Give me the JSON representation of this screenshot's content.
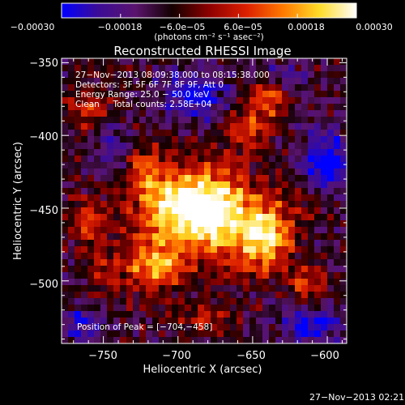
{
  "chart_data": {
    "type": "heatmap",
    "title": "Reconstructed RHESSI Image",
    "xlabel": "Heliocentric X (arcsec)",
    "ylabel": "Heliocentric Y (arcsec)",
    "xlim": [
      -778,
      -587
    ],
    "ylim": [
      -543,
      -347
    ],
    "x_ticks": [
      -750,
      -700,
      -650,
      -600
    ],
    "x_tick_labels": [
      "−750",
      "−700",
      "−650",
      "−600"
    ],
    "y_ticks": [
      -350,
      -400,
      -450,
      -500
    ],
    "y_tick_labels": [
      "−350",
      "−400",
      "−450",
      "−500"
    ],
    "colorbar": {
      "min": -0.0003,
      "max": 0.0003,
      "ticks": [
        -0.0003,
        -0.00018,
        -6e-05,
        6e-05,
        0.00018,
        0.0003
      ],
      "tick_labels": [
        "−0.00030",
        "−0.00018",
        "−6.0e−05",
        "6.0e−05",
        "0.00018",
        "0.00030"
      ],
      "units": "(photons cm⁻² s⁻¹ asec⁻²)",
      "colormap": [
        "#0000ff",
        "#3c0c96",
        "#5a146e",
        "#140000",
        "#8c0000",
        "#dc1e00",
        "#ff7800",
        "#ffdc28",
        "#ffffff"
      ]
    },
    "annotations": [
      "27−Nov−2013 08:09:38.000 to 08:15:38.000",
      "Detectors: 3F 5F 6F 7F 8F 9F, Att 0",
      "Energy Range: 25.0 − 50.0 keV",
      "Clean     Total counts: 2.58E+04"
    ],
    "peak_label": "Position of Peak = [−704,−458]",
    "peak": {
      "x": -704,
      "y": -458
    },
    "sources": [
      {
        "x": -700,
        "y": -450,
        "sx": 20,
        "sy": 18,
        "a": 0.95
      },
      {
        "x": -670,
        "y": -455,
        "sx": 18,
        "sy": 22,
        "a": 0.8
      },
      {
        "x": -640,
        "y": -470,
        "sx": 12,
        "sy": 16,
        "a": 0.85
      },
      {
        "x": -715,
        "y": -490,
        "sx": 14,
        "sy": 12,
        "a": 0.7
      },
      {
        "x": -640,
        "y": -375,
        "sx": 9,
        "sy": 9,
        "a": 0.55
      },
      {
        "x": -655,
        "y": -395,
        "sx": 10,
        "sy": 9,
        "a": 0.45
      },
      {
        "x": -760,
        "y": -460,
        "sx": 9,
        "sy": 12,
        "a": 0.45
      },
      {
        "x": -748,
        "y": -495,
        "sx": 8,
        "sy": 10,
        "a": 0.4
      },
      {
        "x": -760,
        "y": -380,
        "sx": 10,
        "sy": 10,
        "a": 0.35
      },
      {
        "x": -722,
        "y": -423,
        "sx": 10,
        "sy": 12,
        "a": 0.4
      },
      {
        "x": -612,
        "y": -505,
        "sx": 9,
        "sy": 9,
        "a": 0.45
      },
      {
        "x": -680,
        "y": -525,
        "sx": 12,
        "sy": 7,
        "a": 0.35
      },
      {
        "x": -610,
        "y": -445,
        "sx": 10,
        "sy": 10,
        "a": 0.3
      }
    ],
    "negatives": [
      {
        "x": -690,
        "y": -372,
        "sx": 16,
        "sy": 12,
        "a": 0.55
      },
      {
        "x": -600,
        "y": -420,
        "sx": 12,
        "sy": 18,
        "a": 0.65
      },
      {
        "x": -765,
        "y": -530,
        "sx": 10,
        "sy": 8,
        "a": 0.45
      },
      {
        "x": -610,
        "y": -530,
        "sx": 14,
        "sy": 10,
        "a": 0.55
      },
      {
        "x": -745,
        "y": -410,
        "sx": 8,
        "sy": 10,
        "a": 0.4
      },
      {
        "x": -630,
        "y": -360,
        "sx": 10,
        "sy": 6,
        "a": 0.35
      }
    ]
  },
  "footer": {
    "timestamp": "27−Nov−2013 02:21"
  }
}
